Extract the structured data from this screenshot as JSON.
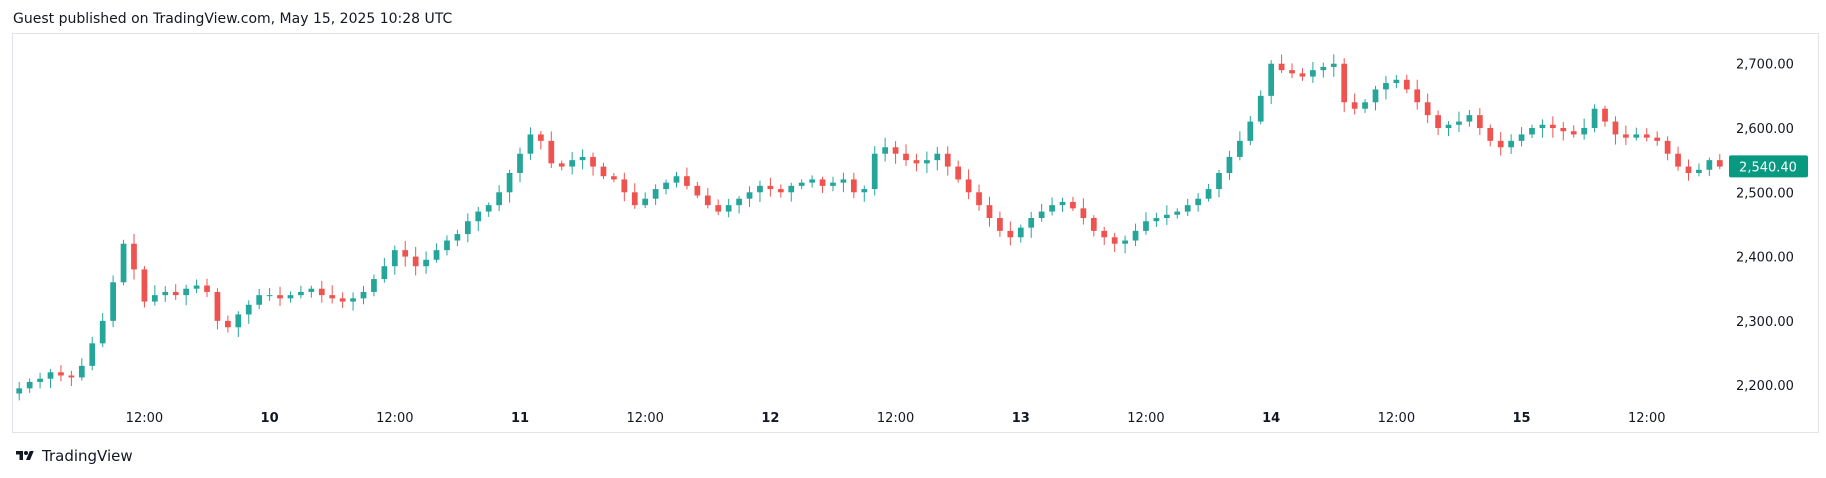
{
  "header": {
    "text": "Guest published on TradingView.com, May 15, 2025 10:28 UTC"
  },
  "footer": {
    "brand": "TradingView",
    "logo_icon": "tradingview-logo-icon"
  },
  "colors": {
    "up": "#26a69a",
    "down": "#ef5350",
    "price_tag": "#089981",
    "grid": "#e0e3eb",
    "text": "#131722"
  },
  "chart_data": {
    "type": "candlestick",
    "ylim": [
      2180,
      2740
    ],
    "y_ticks": [
      "2,200.00",
      "2,300.00",
      "2,400.00",
      "2,500.00",
      "2,600.00",
      "2,700.00"
    ],
    "y_tick_values": [
      2200,
      2300,
      2400,
      2500,
      2600,
      2700
    ],
    "x_ticks": [
      {
        "label": "12:00",
        "bold": false,
        "index": 12
      },
      {
        "label": "10",
        "bold": true,
        "index": 24
      },
      {
        "label": "12:00",
        "bold": false,
        "index": 36
      },
      {
        "label": "11",
        "bold": true,
        "index": 48
      },
      {
        "label": "12:00",
        "bold": false,
        "index": 60
      },
      {
        "label": "12",
        "bold": true,
        "index": 72
      },
      {
        "label": "12:00",
        "bold": false,
        "index": 84
      },
      {
        "label": "13",
        "bold": true,
        "index": 96
      },
      {
        "label": "12:00",
        "bold": false,
        "index": 108
      },
      {
        "label": "14",
        "bold": true,
        "index": 120
      },
      {
        "label": "12:00",
        "bold": false,
        "index": 132
      },
      {
        "label": "15",
        "bold": true,
        "index": 144
      },
      {
        "label": "12:00",
        "bold": false,
        "index": 156
      }
    ],
    "last_price": 2540.4,
    "last_price_label": "2,540.40",
    "close_series": [
      2195,
      2205,
      2210,
      2220,
      2215,
      2212,
      2230,
      2265,
      2300,
      2360,
      2420,
      2380,
      2330,
      2340,
      2345,
      2340,
      2350,
      2355,
      2345,
      2300,
      2290,
      2310,
      2325,
      2340,
      2340,
      2335,
      2340,
      2345,
      2350,
      2340,
      2335,
      2330,
      2335,
      2345,
      2365,
      2385,
      2410,
      2400,
      2385,
      2395,
      2410,
      2425,
      2435,
      2455,
      2470,
      2480,
      2500,
      2530,
      2560,
      2590,
      2580,
      2545,
      2540,
      2550,
      2555,
      2540,
      2525,
      2520,
      2500,
      2480,
      2490,
      2505,
      2515,
      2525,
      2510,
      2495,
      2480,
      2470,
      2480,
      2490,
      2500,
      2510,
      2505,
      2500,
      2510,
      2515,
      2520,
      2510,
      2515,
      2520,
      2500,
      2505,
      2560,
      2570,
      2560,
      2550,
      2545,
      2550,
      2560,
      2540,
      2520,
      2500,
      2480,
      2460,
      2440,
      2430,
      2445,
      2460,
      2470,
      2480,
      2485,
      2475,
      2460,
      2440,
      2430,
      2420,
      2425,
      2440,
      2455,
      2460,
      2465,
      2470,
      2480,
      2490,
      2505,
      2530,
      2555,
      2580,
      2610,
      2650,
      2700,
      2690,
      2685,
      2680,
      2690,
      2695,
      2700,
      2640,
      2630,
      2640,
      2660,
      2670,
      2675,
      2660,
      2640,
      2620,
      2600,
      2605,
      2610,
      2620,
      2600,
      2580,
      2570,
      2580,
      2590,
      2600,
      2605,
      2600,
      2595,
      2590,
      2600,
      2630,
      2610,
      2590,
      2585,
      2590,
      2585,
      2580,
      2560,
      2540,
      2530,
      2535,
      2550,
      2540
    ]
  }
}
